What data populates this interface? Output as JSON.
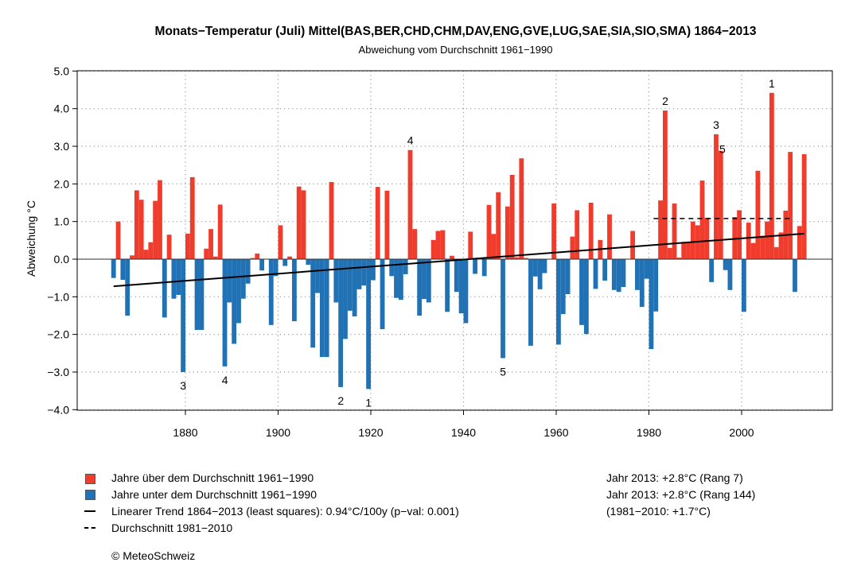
{
  "chart_data": {
    "type": "bar",
    "title": "Monats−Temperatur (Juli) Mittel(BAS,BER,CHD,CHM,DAV,ENG,GVE,LUG,SAE,SIA,SIO,SMA) 1864−2013",
    "subtitle": "Abweichung vom Durchschnitt 1961−1990",
    "xlabel": "",
    "ylabel": "Abweichung °C",
    "xlim": [
      1856,
      2021
    ],
    "ylim": [
      -4,
      5
    ],
    "x_ticks": [
      1880,
      1900,
      1920,
      1940,
      1960,
      1980,
      2000
    ],
    "y_ticks": [
      "5.0",
      "4.0",
      "3.0",
      "2.0",
      "1.0",
      "0.0",
      "−1.0",
      "−2.0",
      "−3.0",
      "−4.0"
    ],
    "grid": true,
    "start_year": 1864,
    "values": [
      -0.5,
      1.0,
      -0.55,
      -1.5,
      0.1,
      1.83,
      1.58,
      0.25,
      0.45,
      1.55,
      2.1,
      -1.55,
      0.65,
      -1.05,
      -0.95,
      -3.0,
      0.68,
      2.18,
      -1.88,
      -1.88,
      0.28,
      0.8,
      0.07,
      1.45,
      -2.85,
      -1.15,
      -2.25,
      -1.7,
      -1.05,
      -0.65,
      0.03,
      0.15,
      -0.3,
      0,
      -1.75,
      -0.45,
      0.9,
      -0.18,
      0.07,
      -1.65,
      1.93,
      1.83,
      -0.15,
      -2.35,
      -0.9,
      -2.6,
      -2.6,
      2.05,
      -1.15,
      -3.4,
      -2.12,
      -1.37,
      -1.52,
      -0.8,
      -0.7,
      -3.45,
      -0.56,
      1.92,
      -1.86,
      1.82,
      -0.45,
      -1.03,
      -1.08,
      -0.4,
      2.9,
      0.8,
      -1.5,
      -1.06,
      -1.15,
      0.51,
      0.75,
      0.77,
      -1.4,
      0.09,
      -0.87,
      -1.44,
      -1.7,
      0.73,
      -0.39,
      0,
      -0.45,
      1.44,
      0.67,
      1.78,
      -2.63,
      1.4,
      2.24,
      0.05,
      2.68,
      0.03,
      -2.3,
      -0.46,
      -0.8,
      -0.37,
      0,
      1.48,
      -2.27,
      -1.46,
      -0.93,
      0.6,
      1.3,
      -1.75,
      -1.99,
      1.5,
      -0.79,
      0.51,
      -0.57,
      1.19,
      -0.82,
      -0.87,
      -0.74,
      0,
      0.75,
      -0.82,
      -1.27,
      -0.52,
      -2.39,
      -1.39,
      1.56,
      3.95,
      0.3,
      1.48,
      0.04,
      0.46,
      0.46,
      1.0,
      0.9,
      2.09,
      1.1,
      -0.61,
      3.32,
      2.88,
      -0.29,
      -0.82,
      1.12,
      1.3,
      -1.4,
      0.97,
      0.43,
      2.35,
      0.62,
      1.0,
      4.42,
      0.32,
      0.71,
      1.29,
      2.85,
      -0.87,
      0.88,
      2.79
    ],
    "trend": {
      "from_year": 1864,
      "to_year": 2013,
      "from_value": -0.72,
      "to_value": 0.68
    },
    "mean_1981_2010": {
      "from_year": 1981,
      "to_year": 2010,
      "value": 1.08
    },
    "rank_labels": [
      {
        "year": 2006,
        "label": "1",
        "side": "above"
      },
      {
        "year": 1983,
        "label": "2",
        "side": "above"
      },
      {
        "year": 1994,
        "label": "3",
        "side": "above"
      },
      {
        "year": 1928,
        "label": "4",
        "side": "above"
      },
      {
        "year": 1995,
        "label": "5",
        "side": "above"
      },
      {
        "year": 1919,
        "label": "1",
        "side": "below"
      },
      {
        "year": 1913,
        "label": "2",
        "side": "below"
      },
      {
        "year": 1879,
        "label": "3",
        "side": "below"
      },
      {
        "year": 1888,
        "label": "4",
        "side": "below"
      },
      {
        "year": 1948,
        "label": "5",
        "side": "below"
      }
    ],
    "colors": {
      "above": "#f03c2d",
      "below": "#2171b5"
    }
  },
  "legend": {
    "above": "Jahre über dem Durchschnitt 1961−1990",
    "below": "Jahre unter dem Durchschnitt 1961−1990",
    "trend": "Linearer Trend 1864−2013 (least squares): 0.94°C/100y (p−val: 0.001)",
    "mean": "Durchschnitt 1981−2010"
  },
  "notes": {
    "line1": "Jahr 2013: +2.8°C (Rang 7)",
    "line2": "Jahr 2013: +2.8°C (Rang 144)",
    "line3": "(1981−2010: +1.7°C)"
  },
  "copyright": "© MeteoSchweiz"
}
